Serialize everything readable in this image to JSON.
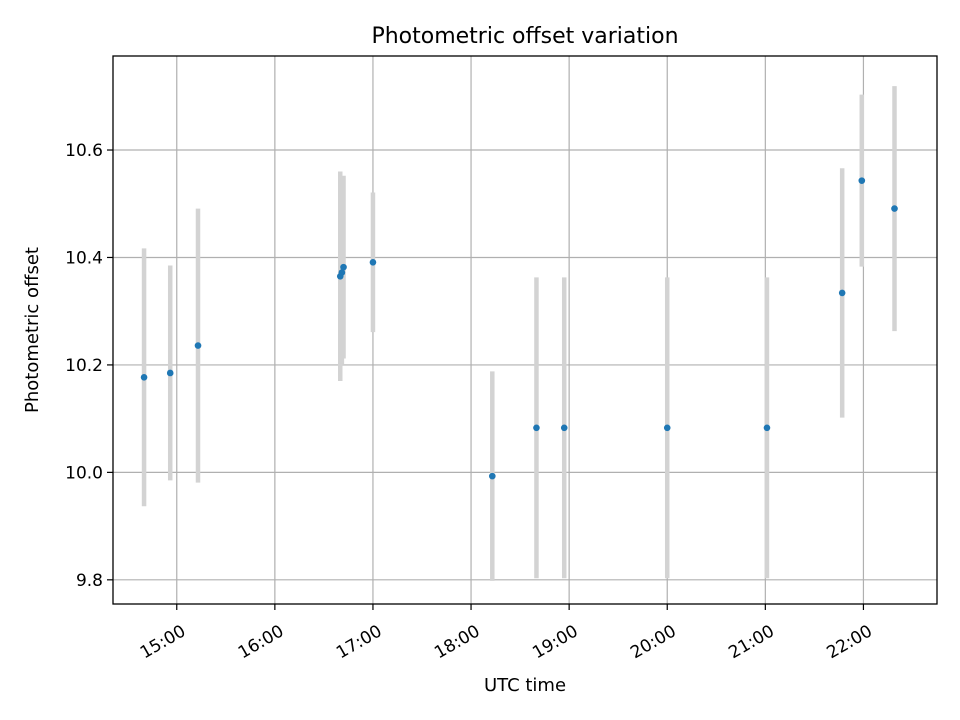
{
  "chart_data": {
    "type": "scatter",
    "title": "Photometric offset variation",
    "xlabel": "UTC time",
    "ylabel": "Photometric offset",
    "x_axis_type": "time",
    "x_tick_labels": [
      "15:00",
      "16:00",
      "17:00",
      "18:00",
      "19:00",
      "20:00",
      "21:00",
      "22:00"
    ],
    "xlim": [
      "14:21",
      "22:45"
    ],
    "ylim": [
      9.755,
      10.775
    ],
    "y_ticks": [
      9.8,
      10.0,
      10.2,
      10.4,
      10.6
    ],
    "y_tick_labels": [
      "9.8",
      "10.0",
      "10.2",
      "10.4",
      "10.6"
    ],
    "grid": true,
    "colors": {
      "point": "#1f77b4",
      "errorbar": "#d3d3d3",
      "grid": "#b0b0b0"
    },
    "series": [
      {
        "points": [
          {
            "x": "14:40",
            "y": 10.177,
            "err": 0.24
          },
          {
            "x": "14:56",
            "y": 10.185,
            "err": 0.2
          },
          {
            "x": "15:13",
            "y": 10.236,
            "err": 0.255
          },
          {
            "x": "16:40",
            "y": 10.365,
            "err": 0.195
          },
          {
            "x": "16:41",
            "y": 10.372,
            "err": 0.172
          },
          {
            "x": "16:42",
            "y": 10.382,
            "err": 0.17
          },
          {
            "x": "17:00",
            "y": 10.391,
            "err": 0.13
          },
          {
            "x": "18:13",
            "y": 9.993,
            "err": 0.195
          },
          {
            "x": "18:40",
            "y": 10.083,
            "err": 0.28
          },
          {
            "x": "18:57",
            "y": 10.083,
            "err": 0.28
          },
          {
            "x": "20:00",
            "y": 10.083,
            "err": 0.28
          },
          {
            "x": "21:01",
            "y": 10.083,
            "err": 0.28
          },
          {
            "x": "21:47",
            "y": 10.334,
            "err": 0.232
          },
          {
            "x": "21:59",
            "y": 10.543,
            "err": 0.16
          },
          {
            "x": "22:19",
            "y": 10.491,
            "err": 0.228
          }
        ]
      }
    ]
  }
}
